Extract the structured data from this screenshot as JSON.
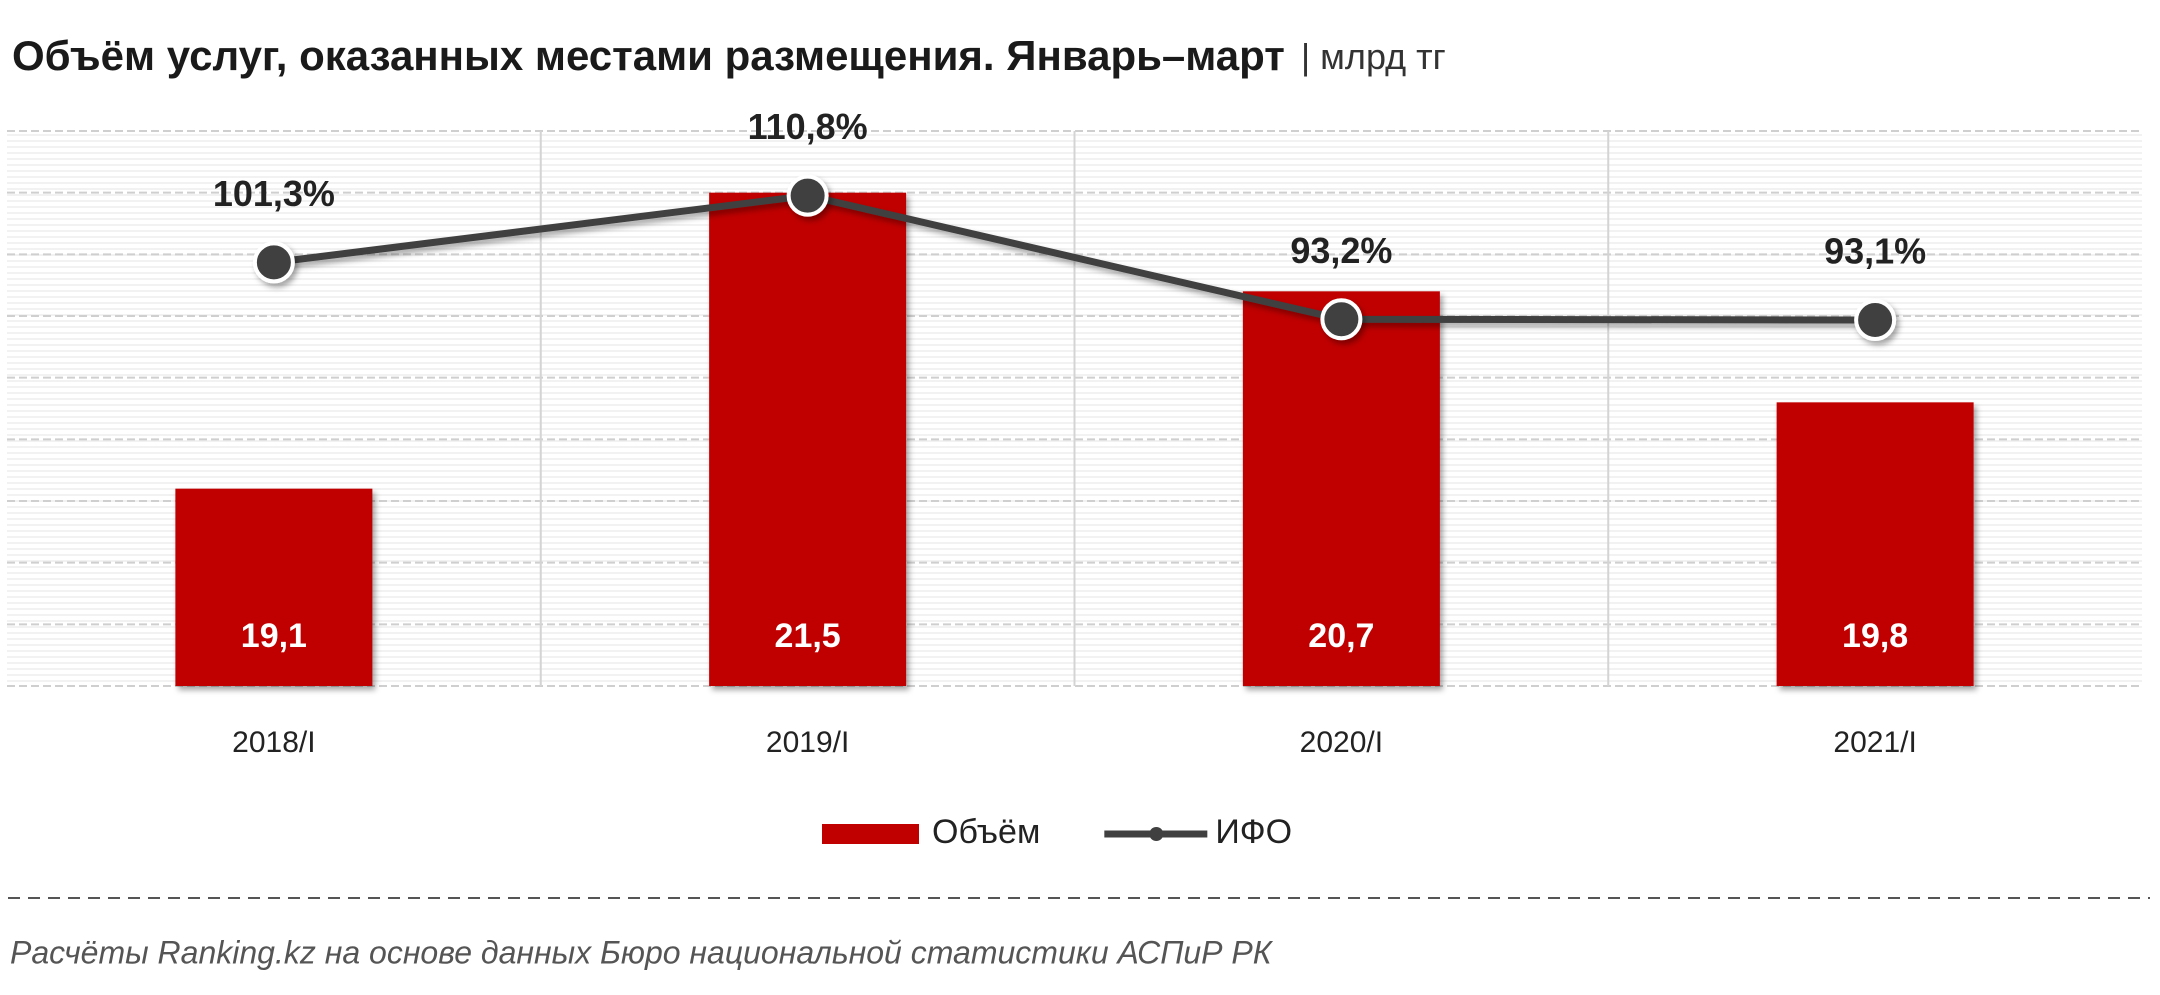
{
  "chart_data": {
    "type": "bar",
    "title": "Объём услуг, оказанных местами размещения. Январь–март",
    "unit": "| млрд тг",
    "categories": [
      "2018/I",
      "2019/I",
      "2020/I",
      "2021/I"
    ],
    "series": [
      {
        "name": "Объём",
        "type": "bar",
        "color": "#c00000",
        "values": [
          19.1,
          21.5,
          20.7,
          19.8
        ],
        "value_labels": [
          "19,1",
          "21,5",
          "20,7",
          "19,8"
        ]
      },
      {
        "name": "ИФО",
        "type": "line",
        "axis": "y2",
        "color": "#404040",
        "values": [
          101.3,
          110.8,
          93.2,
          93.1
        ],
        "value_labels": [
          "101,3%",
          "110,8%",
          "93,2%",
          "93,1%"
        ]
      }
    ],
    "ylim": [
      17.5,
      22
    ],
    "yticks": [
      17.5,
      18,
      18.5,
      19,
      19.5,
      20,
      20.5,
      21,
      21.5,
      22
    ],
    "y2lim": [
      41,
      120
    ],
    "grid": true,
    "legend": "bottom",
    "source": "Расчёты Ranking.kz на основе данных Бюро национальной статистики АСПиР РК"
  }
}
